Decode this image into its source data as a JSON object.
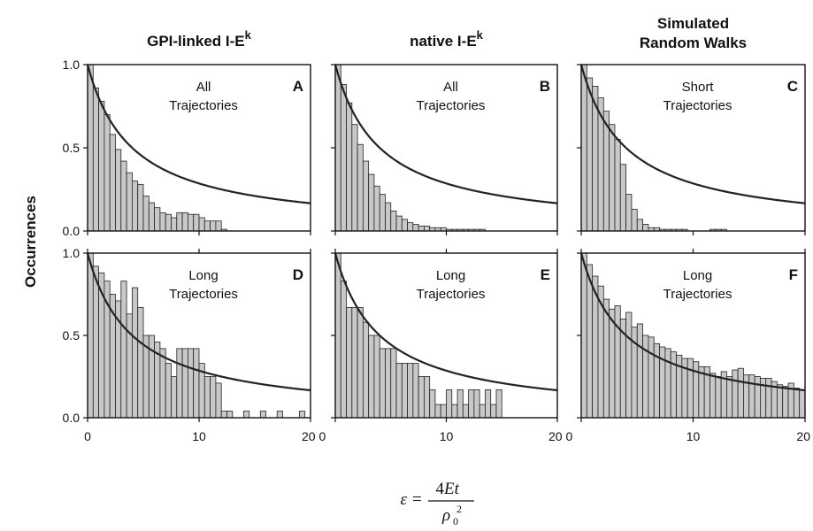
{
  "column_titles": [
    {
      "text": "GPI-linked I-E",
      "sup": "k"
    },
    {
      "text": "native I-E",
      "sup": "k"
    },
    {
      "text": "Simulated",
      "line2": "Random Walks"
    }
  ],
  "ylabel": "Occurrences",
  "xlabel": {
    "lhs": "ε",
    "eq": "=",
    "num_digit": "4",
    "num_var": "Et",
    "den_var": "ρ",
    "den_sub": "0",
    "den_sup": "2"
  },
  "chart_data": [
    {
      "type": "bar",
      "panel": "A",
      "annotation": [
        "All",
        "Trajectories"
      ],
      "xlim": [
        0,
        20
      ],
      "ylim": [
        0,
        1
      ],
      "bin_width": 0.5,
      "values": [
        1.0,
        0.86,
        0.78,
        0.7,
        0.58,
        0.49,
        0.42,
        0.35,
        0.3,
        0.28,
        0.21,
        0.17,
        0.14,
        0.11,
        0.1,
        0.08,
        0.11,
        0.11,
        0.1,
        0.1,
        0.08,
        0.06,
        0.06,
        0.06,
        0.01,
        0.0,
        0.0,
        0.0,
        0.0,
        0.0,
        0.0,
        0.0,
        0.0,
        0.0,
        0.0,
        0.0,
        0.0,
        0.0,
        0.0,
        0.0
      ]
    },
    {
      "type": "bar",
      "panel": "B",
      "annotation": [
        "All",
        "Trajectories"
      ],
      "xlim": [
        0,
        20
      ],
      "ylim": [
        0,
        1
      ],
      "bin_width": 0.5,
      "values": [
        1.0,
        0.88,
        0.77,
        0.64,
        0.52,
        0.42,
        0.34,
        0.27,
        0.22,
        0.17,
        0.12,
        0.09,
        0.07,
        0.05,
        0.04,
        0.03,
        0.03,
        0.02,
        0.02,
        0.02,
        0.01,
        0.01,
        0.01,
        0.01,
        0.01,
        0.01,
        0.01,
        0.0,
        0.0,
        0.0,
        0.0,
        0.0,
        0.0,
        0.0,
        0.0,
        0.0,
        0.0,
        0.0,
        0.0,
        0.0
      ]
    },
    {
      "type": "bar",
      "panel": "C",
      "annotation": [
        "Short",
        "Trajectories"
      ],
      "xlim": [
        0,
        20
      ],
      "ylim": [
        0,
        1
      ],
      "bin_width": 0.5,
      "values": [
        1.0,
        0.92,
        0.87,
        0.8,
        0.72,
        0.64,
        0.55,
        0.4,
        0.22,
        0.13,
        0.07,
        0.04,
        0.02,
        0.02,
        0.01,
        0.01,
        0.01,
        0.01,
        0.01,
        0.0,
        0.0,
        0.0,
        0.0,
        0.01,
        0.01,
        0.01,
        0.0,
        0.0,
        0.0,
        0.0,
        0.0,
        0.0,
        0.0,
        0.0,
        0.0,
        0.0,
        0.0,
        0.0,
        0.0,
        0.0
      ]
    },
    {
      "type": "bar",
      "panel": "D",
      "annotation": [
        "Long",
        "Trajectories"
      ],
      "xlim": [
        0,
        20
      ],
      "ylim": [
        0,
        1
      ],
      "bin_width": 0.5,
      "values": [
        1.0,
        0.92,
        0.88,
        0.83,
        0.75,
        0.71,
        0.83,
        0.63,
        0.79,
        0.67,
        0.5,
        0.5,
        0.46,
        0.42,
        0.33,
        0.25,
        0.42,
        0.42,
        0.42,
        0.42,
        0.33,
        0.25,
        0.25,
        0.21,
        0.04,
        0.04,
        0.0,
        0.0,
        0.04,
        0.0,
        0.0,
        0.04,
        0.0,
        0.0,
        0.04,
        0.0,
        0.0,
        0.0,
        0.04,
        0.0
      ]
    },
    {
      "type": "bar",
      "panel": "E",
      "annotation": [
        "Long",
        "Trajectories"
      ],
      "xlim": [
        0,
        20
      ],
      "ylim": [
        0,
        1
      ],
      "bin_width": 0.5,
      "values": [
        1.0,
        0.83,
        0.67,
        0.67,
        0.67,
        0.58,
        0.5,
        0.5,
        0.42,
        0.42,
        0.42,
        0.33,
        0.33,
        0.33,
        0.33,
        0.25,
        0.25,
        0.17,
        0.08,
        0.08,
        0.17,
        0.08,
        0.17,
        0.08,
        0.17,
        0.17,
        0.08,
        0.17,
        0.08,
        0.17,
        0.0,
        0.0,
        0.0,
        0.0,
        0.0,
        0.0,
        0.0,
        0.0,
        0.0,
        0.0
      ]
    },
    {
      "type": "bar",
      "panel": "F",
      "annotation": [
        "Long",
        "Trajectories"
      ],
      "xlim": [
        0,
        20
      ],
      "ylim": [
        0,
        1
      ],
      "bin_width": 0.5,
      "values": [
        1.0,
        0.93,
        0.86,
        0.8,
        0.72,
        0.66,
        0.68,
        0.6,
        0.64,
        0.55,
        0.57,
        0.5,
        0.49,
        0.45,
        0.43,
        0.42,
        0.4,
        0.38,
        0.36,
        0.36,
        0.34,
        0.31,
        0.31,
        0.27,
        0.25,
        0.28,
        0.25,
        0.29,
        0.3,
        0.26,
        0.26,
        0.25,
        0.24,
        0.24,
        0.22,
        0.2,
        0.19,
        0.21,
        0.18,
        0.17
      ]
    }
  ],
  "x_ticks": [
    "0",
    "10",
    "20"
  ],
  "x_ticks_shared": [
    "0",
    "10",
    "20 0",
    "10",
    "20 0",
    "10",
    "20"
  ],
  "y_ticks": [
    "0.0",
    "0.5",
    "1.0"
  ]
}
